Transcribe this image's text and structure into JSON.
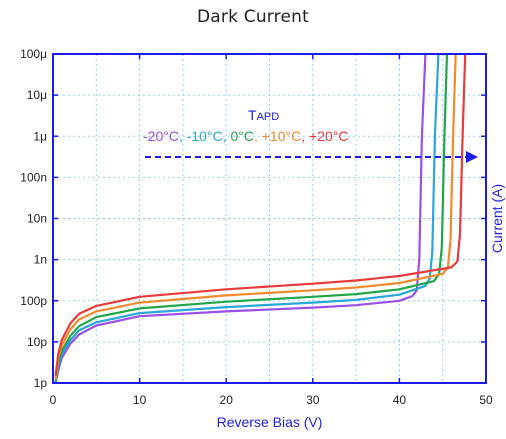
{
  "chart_data": {
    "type": "line",
    "title": "Dark Current",
    "xlabel": "Reverse Bias (V)",
    "ylabel": "Current (A)",
    "xlim": [
      0,
      50
    ],
    "ylim_log10": [
      -12,
      -4
    ],
    "y_scale": "log",
    "grid": true,
    "x_ticks": [
      "0",
      "10",
      "20",
      "30",
      "40",
      "50"
    ],
    "y_ticks": [
      "1p",
      "10p",
      "100p",
      "1n",
      "10n",
      "100n",
      "1μ",
      "10μ",
      "100μ"
    ],
    "annotation": {
      "title": "Tapd",
      "labels": [
        {
          "text": "-20°C",
          "color": "#9b4fe6"
        },
        {
          "text": ", ",
          "color": "#2aa6d8"
        },
        {
          "text": "-10°C",
          "color": "#2aa6d8"
        },
        {
          "text": ", ",
          "color": "#2aa6d8"
        },
        {
          "text": "0°C",
          "color": "#22a64a"
        },
        {
          "text": ", ",
          "color": "#f08a2c"
        },
        {
          "text": "+10°C",
          "color": "#f08a2c"
        },
        {
          "text": ", ",
          "color": "#e83a3a"
        },
        {
          "text": "+20°C",
          "color": "#e83a3a"
        }
      ],
      "arrow": "dashed, left-to-right"
    },
    "series": [
      {
        "name": "-20°C",
        "color": "#9b4fe6",
        "x": [
          0.3,
          0.6,
          1,
          2,
          3,
          5,
          10,
          20,
          30,
          35,
          40,
          41.5,
          42,
          42.3,
          42.6,
          43
        ],
        "y": [
          1e-12,
          2e-12,
          4e-12,
          9e-12,
          1.5e-11,
          2.5e-11,
          4.2e-11,
          5.5e-11,
          6.8e-11,
          7.8e-11,
          1e-10,
          1.3e-10,
          1.8e-10,
          1e-09,
          1e-06,
          0.0001
        ]
      },
      {
        "name": "-10°C",
        "color": "#2aa6d8",
        "x": [
          0.3,
          0.6,
          1,
          2,
          3,
          5,
          10,
          20,
          30,
          35,
          40,
          43,
          43.5,
          43.8,
          44.1,
          44.5
        ],
        "y": [
          1e-12,
          2.5e-12,
          5e-12,
          1.1e-11,
          1.9e-11,
          3e-11,
          5e-11,
          7e-11,
          9e-11,
          1.05e-10,
          1.4e-10,
          2.3e-10,
          3.5e-10,
          1.5e-09,
          1e-06,
          0.0001
        ]
      },
      {
        "name": "0°C",
        "color": "#22a64a",
        "x": [
          0.3,
          0.6,
          1,
          2,
          3,
          5,
          10,
          20,
          30,
          35,
          40,
          44,
          44.6,
          44.9,
          45.2,
          45.5
        ],
        "y": [
          1e-12,
          3e-12,
          6e-12,
          1.4e-11,
          2.4e-11,
          4e-11,
          6.5e-11,
          9.5e-11,
          1.25e-10,
          1.45e-10,
          1.9e-10,
          3e-10,
          4.5e-10,
          2e-09,
          1e-06,
          0.0001
        ]
      },
      {
        "name": "+10°C",
        "color": "#f08a2c",
        "x": [
          0.3,
          0.6,
          1,
          2,
          3,
          5,
          10,
          20,
          30,
          35,
          40,
          45,
          45.6,
          45.9,
          46.2,
          46.5
        ],
        "y": [
          1.2e-12,
          4e-12,
          8e-12,
          2e-11,
          3.5e-11,
          5.5e-11,
          9e-11,
          1.35e-10,
          1.8e-10,
          2.1e-10,
          2.7e-10,
          4.5e-10,
          6.5e-10,
          3e-09,
          1e-06,
          0.0001
        ]
      },
      {
        "name": "+20°C",
        "color": "#e83a3a",
        "x": [
          0.3,
          0.6,
          1,
          2,
          3,
          5,
          10,
          20,
          30,
          35,
          40,
          46,
          46.7,
          47,
          47.3,
          47.6
        ],
        "y": [
          1.5e-12,
          5e-12,
          1.1e-11,
          2.8e-11,
          4.8e-11,
          7.5e-11,
          1.25e-10,
          1.9e-10,
          2.6e-10,
          3.1e-10,
          4e-10,
          6.5e-10,
          9e-10,
          4e-09,
          1e-06,
          0.0001
        ]
      }
    ],
    "colors": {
      "axis": "#1a1aee",
      "grid": "#8fd0f0",
      "axis_label": "#2222dd",
      "arrow": "#1a1aee",
      "annotation_title": "#2222dd"
    }
  }
}
